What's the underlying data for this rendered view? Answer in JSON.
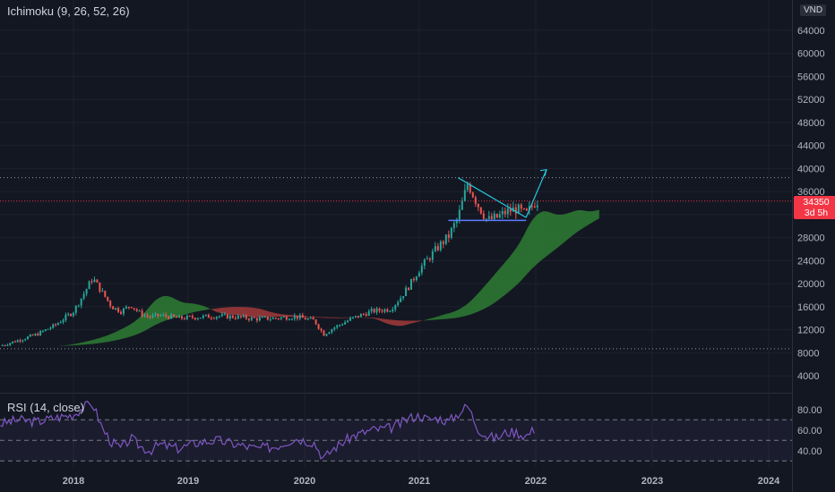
{
  "main_indicator_label": "Ichimoku (9, 26, 52, 26)",
  "rsi_label": "RSI (14, close)",
  "currency_badge": "VND",
  "price_tag": {
    "price": "34350",
    "countdown": "3d 5h"
  },
  "colors": {
    "background": "#131722",
    "candle_up": "#26a69a",
    "candle_down": "#ef5350",
    "cloud_bull": "#2e7d32",
    "cloud_bear": "#a33a3a",
    "rsi_line": "#7e57c2",
    "drawing": "#26c6da",
    "support": "#5b7cff"
  },
  "chart_data": [
    {
      "type": "candlestick",
      "title": "",
      "x_ticks": [
        "2018",
        "2019",
        "2020",
        "2021",
        "2022",
        "2023",
        "2024"
      ],
      "y_ticks": [
        4000,
        8000,
        12000,
        16000,
        20000,
        24000,
        28000,
        32000,
        36000,
        40000,
        44000,
        48000,
        52000,
        56000,
        60000,
        64000
      ],
      "ylim": [
        2000,
        66000
      ],
      "dotted_levels": [
        38400,
        8700
      ],
      "last_price": 34350,
      "x": [
        "2017-05",
        "2017-07",
        "2017-09",
        "2017-11",
        "2018-01",
        "2018-02",
        "2018-03",
        "2018-04",
        "2018-05",
        "2018-06",
        "2018-07",
        "2018-08",
        "2018-09",
        "2018-10",
        "2018-11",
        "2018-12",
        "2019-02",
        "2019-04",
        "2019-06",
        "2019-08",
        "2019-10",
        "2019-12",
        "2020-02",
        "2020-03",
        "2020-04",
        "2020-06",
        "2020-08",
        "2020-10",
        "2020-11",
        "2020-12",
        "2021-01",
        "2021-02",
        "2021-03",
        "2021-04",
        "2021-05",
        "2021-06",
        "2021-07",
        "2021-08",
        "2021-09",
        "2021-10",
        "2021-11",
        "2021-12",
        "2022-01"
      ],
      "close": [
        9200,
        10200,
        11200,
        12800,
        15200,
        18000,
        21000,
        18500,
        16000,
        15200,
        16300,
        14800,
        14200,
        14500,
        14300,
        14000,
        14200,
        14400,
        14200,
        13900,
        14000,
        14300,
        13600,
        11200,
        12300,
        14000,
        15200,
        15600,
        17500,
        19800,
        22500,
        24500,
        26500,
        28200,
        31500,
        37500,
        33800,
        31000,
        31500,
        32500,
        33000,
        32000,
        34350
      ],
      "resistance_line": {
        "from": [
          "2021-05",
          38400
        ],
        "to": [
          "2021-12",
          31500
        ]
      },
      "support_line": {
        "from": [
          "2021-04",
          31000
        ],
        "to": [
          "2021-12",
          31000
        ]
      },
      "projection_arrow": {
        "from": [
          "2021-12",
          31500
        ],
        "to": [
          "2022-01",
          39800
        ]
      }
    },
    {
      "type": "line",
      "title": "",
      "y_ticks": [
        40,
        60,
        80
      ],
      "ylim": [
        25,
        92
      ],
      "bands": [
        70,
        50,
        30
      ],
      "x": [
        "2017-05",
        "2017-07",
        "2017-09",
        "2017-11",
        "2018-01",
        "2018-02",
        "2018-03",
        "2018-04",
        "2018-05",
        "2018-06",
        "2018-07",
        "2018-08",
        "2018-09",
        "2018-10",
        "2018-11",
        "2018-12",
        "2019-02",
        "2019-04",
        "2019-06",
        "2019-08",
        "2019-10",
        "2019-12",
        "2020-02",
        "2020-03",
        "2020-04",
        "2020-06",
        "2020-08",
        "2020-10",
        "2020-11",
        "2020-12",
        "2021-01",
        "2021-02",
        "2021-03",
        "2021-04",
        "2021-05",
        "2021-06",
        "2021-07",
        "2021-08",
        "2021-09",
        "2021-10",
        "2021-11",
        "2021-12",
        "2022-01"
      ],
      "values": [
        66,
        70,
        68,
        72,
        75,
        82,
        86,
        62,
        48,
        42,
        52,
        44,
        40,
        46,
        44,
        42,
        48,
        50,
        46,
        42,
        44,
        52,
        48,
        32,
        42,
        54,
        60,
        62,
        66,
        72,
        74,
        70,
        72,
        68,
        76,
        84,
        62,
        54,
        52,
        58,
        58,
        54,
        62
      ]
    }
  ]
}
